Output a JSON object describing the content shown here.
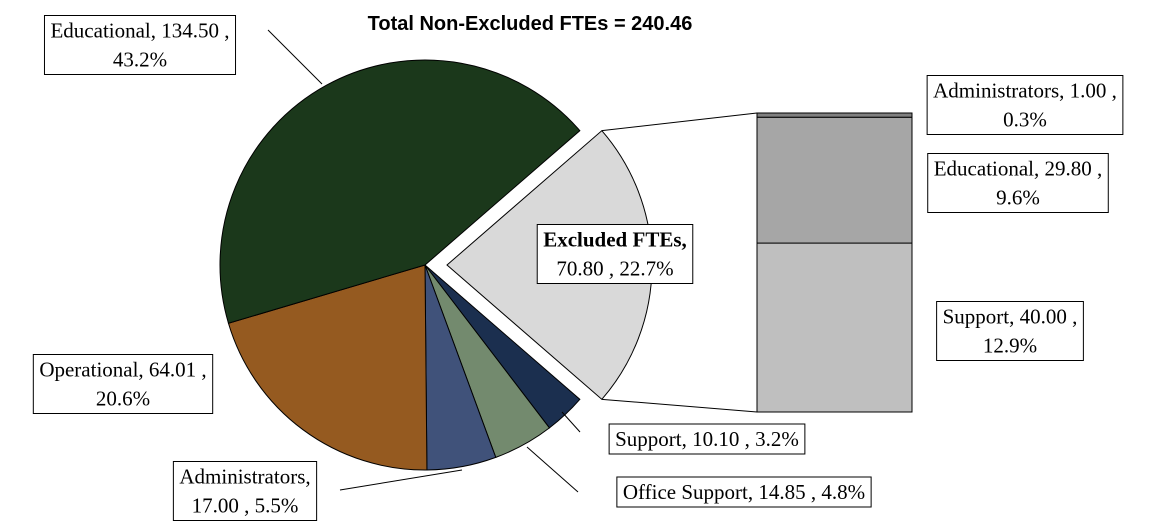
{
  "chart_data": {
    "type": "pie-of-bar",
    "title": "Total Non-Excluded FTEs = 240.46",
    "values": [
      70.8,
      10.1,
      14.85,
      17.0,
      64.01,
      134.5
    ],
    "data_labels": [
      [
        "Excluded FTEs,",
        "70.80 , 22.7%"
      ],
      [
        "Support, 10.10 , 3.2%"
      ],
      [
        "Office Support, 14.85 , 4.8%"
      ],
      [
        "Administrators,",
        "17.00 , 5.5%"
      ],
      [
        "Operational, 64.01 ,",
        "20.6%"
      ],
      [
        "Educational, 134.50 ,",
        "43.2%"
      ]
    ],
    "colors": [
      "#d9d9d9",
      "#1b2f4f",
      "#738a6e",
      "#40527a",
      "#955a20",
      "#1b381b"
    ],
    "exploded": 0,
    "bar": {
      "values": [
        40.0,
        29.8,
        1.0
      ],
      "data_labels": [
        [
          "Support, 40.00 ,",
          "12.9%"
        ],
        [
          "Educational, 29.80 ,",
          "9.6%"
        ],
        [
          "Administrators, 1.00 ,",
          "0.3%"
        ]
      ],
      "colors": [
        "#bfbfbf",
        "#a6a6a6",
        "#808080"
      ]
    }
  }
}
